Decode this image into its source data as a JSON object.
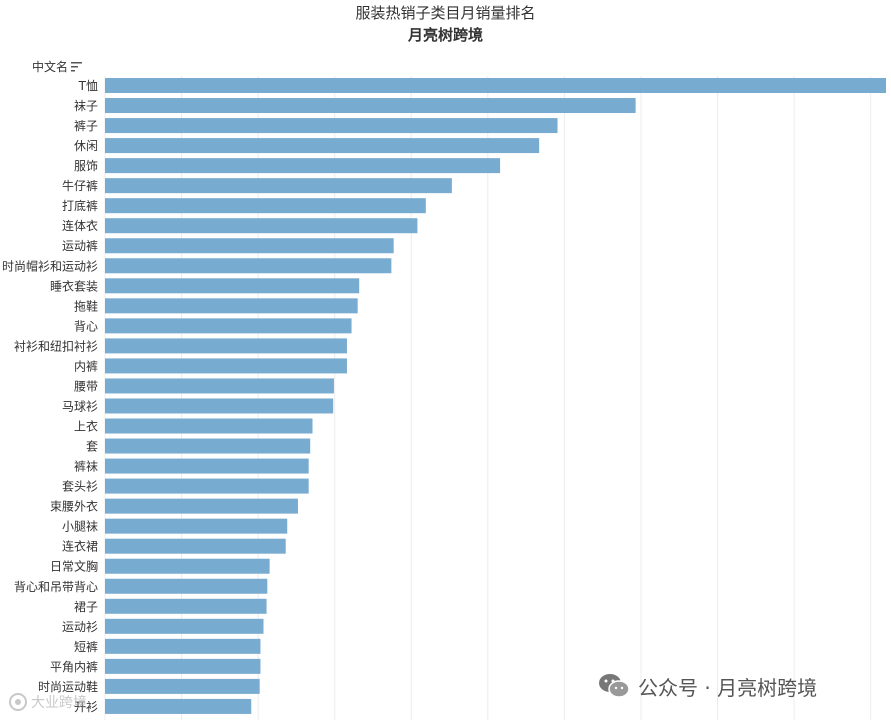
{
  "header": {
    "title": "服装热销子类目月销量排名",
    "subtitle": "月亮树跨境",
    "column_label": "中文名"
  },
  "watermark": {
    "text": "公众号 · 月亮树跨境",
    "logo_text": "大业跨境"
  },
  "colors": {
    "bar": "#78abd0",
    "grid": "#ececec"
  },
  "chart_data": {
    "type": "bar",
    "orientation": "horizontal",
    "categories": [
      "T恤",
      "袜子",
      "裤子",
      "休闲",
      "服饰",
      "牛仔裤",
      "打底裤",
      "连体衣",
      "运动裤",
      "时尚帽衫和运动衫",
      "睡衣套装",
      "拖鞋",
      "背心",
      "衬衫和纽扣衬衫",
      "内裤",
      "腰带",
      "马球衫",
      "上衣",
      "套",
      "裤袜",
      "套头衫",
      "束腰外衣",
      "小腿袜",
      "连衣裙",
      "日常文胸",
      "背心和吊带背心",
      "裙子",
      "运动衫",
      "短裤",
      "平角内裤",
      "时尚运动鞋",
      "开衫"
    ],
    "values": [
      102,
      69.3,
      59.1,
      56.7,
      51.6,
      45.3,
      41.9,
      40.8,
      37.7,
      37.4,
      33.2,
      33.0,
      32.2,
      31.6,
      31.6,
      29.9,
      29.8,
      27.1,
      26.8,
      26.6,
      26.6,
      25.2,
      23.8,
      23.6,
      21.5,
      21.2,
      21.1,
      20.7,
      20.3,
      20.3,
      20.2,
      19.1
    ],
    "xlim": [
      0,
      102
    ],
    "grid": true,
    "gridlines_every": 10,
    "legend": "none"
  }
}
